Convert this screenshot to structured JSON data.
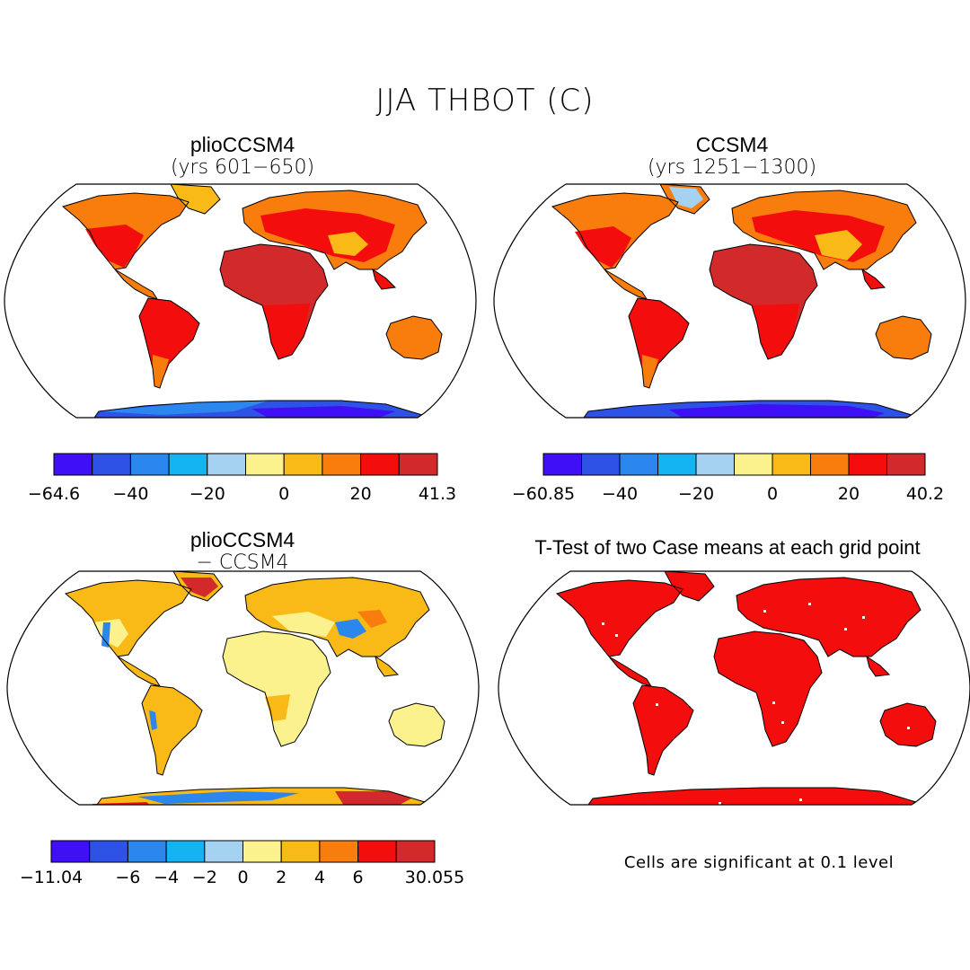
{
  "title": "JJA THBOT (C)",
  "panels": [
    {
      "title": "plioCCSM4",
      "subtitle": "(yrs 601−650)",
      "map": "absolute"
    },
    {
      "title": "CCSM4",
      "subtitle": "(yrs 1251−1300)",
      "map": "absolute"
    },
    {
      "title": "plioCCSM4",
      "subtitle": "− CCSM4",
      "map": "difference"
    },
    {
      "title": "T-Test of two Case means at each grid point",
      "subtitle": "",
      "map": "significance"
    }
  ],
  "colorbars": [
    {
      "colors": [
        "#3f0ff5",
        "#2e52e6",
        "#2b86ee",
        "#14b4f0",
        "#a5d2f0",
        "#fbf28e",
        "#f9b916",
        "#f97d0c",
        "#f40d0d",
        "#d22a2a"
      ],
      "ticks": [
        "−64.6",
        "−40",
        "−20",
        "0",
        "20",
        "41.3"
      ]
    },
    {
      "colors": [
        "#3f0ff5",
        "#2e52e6",
        "#2b86ee",
        "#14b4f0",
        "#a5d2f0",
        "#fbf28e",
        "#f9b916",
        "#f97d0c",
        "#f40d0d",
        "#d22a2a"
      ],
      "ticks": [
        "−60.85",
        "−40",
        "−20",
        "0",
        "20",
        "40.2"
      ]
    },
    {
      "colors": [
        "#3f0ff5",
        "#2e52e6",
        "#2b86ee",
        "#14b4f0",
        "#a5d2f0",
        "#fbf28e",
        "#f9b916",
        "#f97d0c",
        "#f40d0d",
        "#d22a2a"
      ],
      "ticks": [
        "−11.04",
        "−6",
        "−4",
        "−2",
        "0",
        "2",
        "4",
        "6",
        "30.055"
      ]
    }
  ],
  "significance_note": "Cells are significant at 0.1 level"
}
